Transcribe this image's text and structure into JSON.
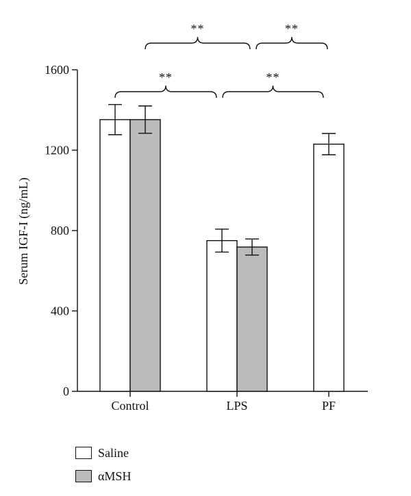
{
  "chart_data": {
    "type": "bar",
    "title": "",
    "xlabel": "",
    "ylabel": "Serum IGF-I (ng/mL)",
    "ylim": [
      0,
      1600
    ],
    "yticks": [
      "0",
      "400",
      "800",
      "1200",
      "1600"
    ],
    "grid": false,
    "legend_position": "bottom-left",
    "categories": [
      "Control",
      "LPS",
      "PF"
    ],
    "series": [
      {
        "name": "Saline",
        "color": "#ffffff",
        "values": [
          1352,
          750,
          1230
        ],
        "errors": [
          75,
          57,
          53
        ]
      },
      {
        "name": "αMSH",
        "color": "#bbbbbb",
        "values": [
          1352,
          718,
          null
        ],
        "errors": [
          68,
          40,
          null
        ]
      }
    ],
    "significance": [
      {
        "label": "**",
        "from": "Control Saline",
        "to": "LPS Saline"
      },
      {
        "label": "**",
        "from": "LPS Saline",
        "to": "PF Saline"
      },
      {
        "label": "**",
        "from": "Control αMSH",
        "to": "LPS αMSH"
      },
      {
        "label": "**",
        "from": "LPS αMSH",
        "to": "PF Saline"
      }
    ]
  }
}
